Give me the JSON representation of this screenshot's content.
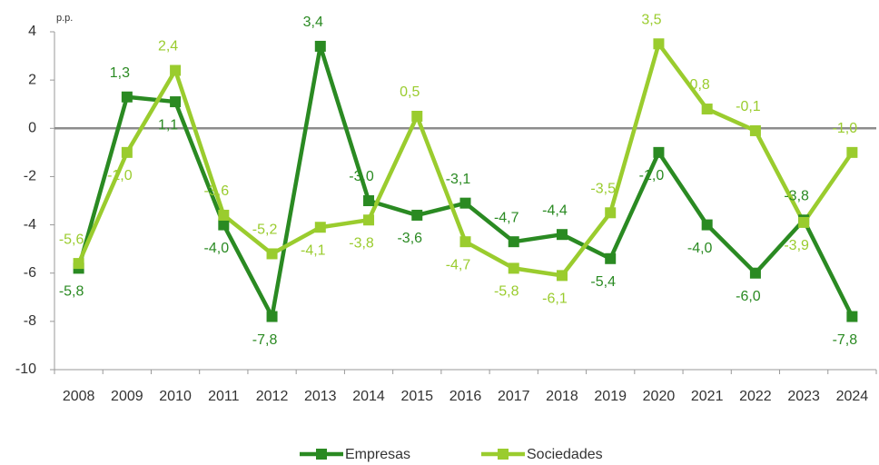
{
  "chart_data": {
    "type": "line",
    "y_unit": "p.p.",
    "categories": [
      "2008",
      "2009",
      "2010",
      "2011",
      "2012",
      "2013",
      "2014",
      "2015",
      "2016",
      "2017",
      "2018",
      "2019",
      "2020",
      "2021",
      "2022",
      "2023",
      "2024"
    ],
    "series": [
      {
        "name": "Empresas",
        "color": "#2a8a22",
        "values": [
          -5.8,
          1.3,
          1.1,
          -4.0,
          -7.8,
          3.4,
          -3.0,
          -3.6,
          -3.1,
          -4.7,
          -4.4,
          -5.4,
          -1.0,
          -4.0,
          -6.0,
          -3.8,
          -7.8
        ],
        "value_labels": [
          "-5,8",
          "1,3",
          "1,1",
          "-4,0",
          "-7,8",
          "3,4",
          "-3,0",
          "-3,6",
          "-3,1",
          "-4,7",
          "-4,4",
          "-5,4",
          "-1,0",
          "-4,0",
          "-6,0",
          "-3,8",
          "-7,8"
        ]
      },
      {
        "name": "Sociedades",
        "color": "#9acc2e",
        "values": [
          -5.6,
          -1.0,
          2.4,
          -3.6,
          -5.2,
          -4.1,
          -3.8,
          0.5,
          -4.7,
          -5.8,
          -6.1,
          -3.5,
          3.5,
          0.8,
          -0.1,
          -3.9,
          -1.0
        ],
        "value_labels": [
          "-5,6",
          "-1,0",
          "2,4",
          "-3,6",
          "-5,2",
          "-4,1",
          "-3,8",
          "0,5",
          "-4,7",
          "-5,8",
          "-6,1",
          "-3,5",
          "3,5",
          "0,8",
          "-0,1",
          "-3,9",
          "-1,0"
        ]
      }
    ],
    "ylim": [
      -10,
      4
    ],
    "yticks": [
      4,
      2,
      0,
      -2,
      -4,
      -6,
      -8,
      -10
    ],
    "grid": false,
    "legend": "bottom"
  }
}
